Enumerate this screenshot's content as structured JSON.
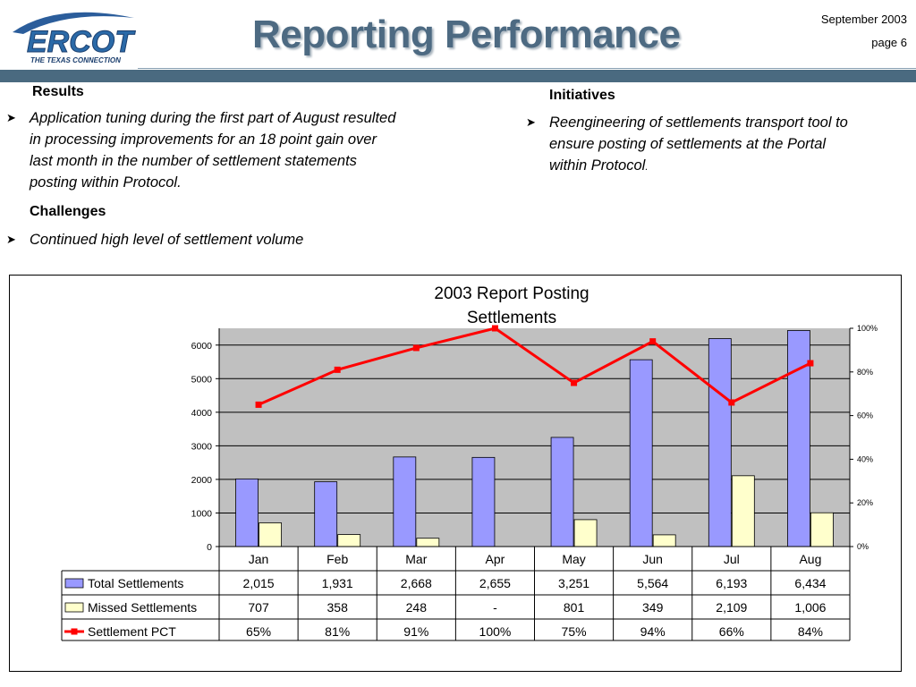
{
  "header": {
    "logo_text": "ERCOT",
    "logo_subtext": "THE TEXAS CONNECTION",
    "title": "Reporting Performance",
    "date": "September 2003",
    "page": "page 6",
    "colors": {
      "title": "#4d6a82",
      "bar": "#4a6a80",
      "logo_blue": "#2b5d9b"
    }
  },
  "results": {
    "heading": "Results",
    "lines": [
      "Application tuning during the first part of August resulted",
      "in processing improvements for an 18 point gain over",
      "last month in the number of settlement statements",
      "posting within Protocol."
    ]
  },
  "challenges": {
    "heading": "Challenges",
    "bullet": "Continued high level of settlement volume"
  },
  "initiatives": {
    "heading": "Initiatives",
    "lines": [
      "Reengineering of settlements transport tool to",
      "ensure posting of settlements at the Portal",
      "within Protocol"
    ],
    "trailing_dot": "."
  },
  "chart_data": {
    "type": "bar",
    "title_lines": [
      "2003 Report Posting",
      "Settlements"
    ],
    "categories": [
      "Jan",
      "Feb",
      "Mar",
      "Apr",
      "May",
      "Jun",
      "Jul",
      "Aug"
    ],
    "ylim": [
      0,
      6500
    ],
    "yticks": [
      0,
      1000,
      2000,
      3000,
      4000,
      5000,
      6000
    ],
    "y2lim": [
      0,
      100
    ],
    "y2ticks": [
      "0%",
      "20%",
      "40%",
      "60%",
      "80%",
      "100%"
    ],
    "grid": true,
    "legend": "data-table",
    "series": [
      {
        "name": "Total Settlements",
        "type": "bar",
        "color": "#9999ff",
        "values": [
          2015,
          1931,
          2668,
          2655,
          3251,
          5564,
          6193,
          6434
        ],
        "labels": [
          "2,015",
          "1,931",
          "2,668",
          "2,655",
          "3,251",
          "5,564",
          "6,193",
          "6,434"
        ]
      },
      {
        "name": "Missed Settlements",
        "type": "bar",
        "color": "#ffffcc",
        "values": [
          707,
          358,
          248,
          0,
          801,
          349,
          2109,
          1006
        ],
        "labels": [
          "707",
          "358",
          "248",
          "-",
          "801",
          "349",
          "2,109",
          "1,006"
        ]
      },
      {
        "name": "Settlement PCT",
        "type": "line",
        "axis": "secondary",
        "color": "#ff0000",
        "values": [
          65,
          81,
          91,
          100,
          75,
          94,
          66,
          84
        ],
        "labels": [
          "65%",
          "81%",
          "91%",
          "100%",
          "75%",
          "94%",
          "66%",
          "84%"
        ]
      }
    ]
  }
}
